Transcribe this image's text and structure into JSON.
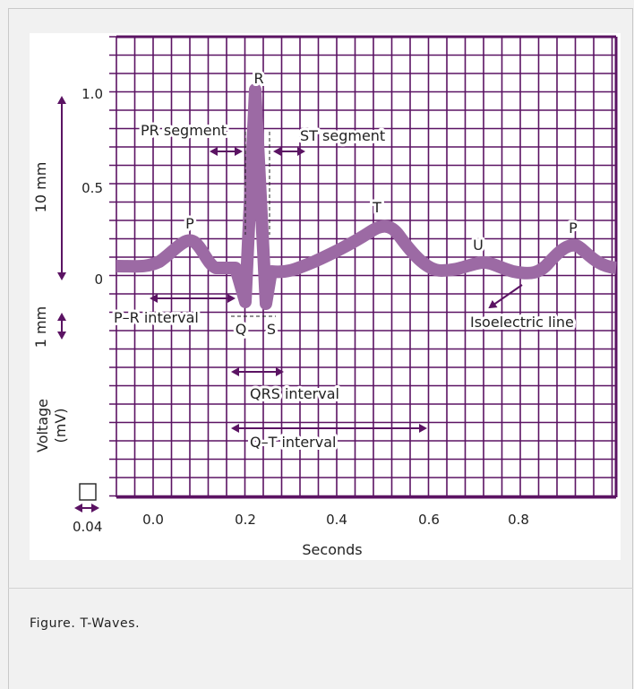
{
  "caption": "Figure. T-Waves.",
  "colors": {
    "grid": "#5b1363",
    "waveform": "#9c6aa4",
    "card_background": "#f1f1f1",
    "figure_background": "#ffffff",
    "text": "#222222"
  },
  "y_ticks": [
    "1.0",
    "0.5",
    "0"
  ],
  "x_ticks": [
    "0.0",
    "0.2",
    "0.4",
    "0.6",
    "0.8"
  ],
  "x_axis_title": "Seconds",
  "left_labels": {
    "ten_mm": "10 mm",
    "one_mm": "1 mm",
    "voltage": "Voltage",
    "voltage_unit": "(mV)",
    "small_square": "0.04"
  },
  "wave_labels": {
    "p1": "P",
    "q": "Q",
    "r": "R",
    "s": "S",
    "t": "T",
    "u": "U",
    "p2": "P"
  },
  "annotations": {
    "pr_segment": "PR segment",
    "st_segment": "ST segment",
    "pr_interval": "P–R interval",
    "isoelectric_line": "Isoelectric line",
    "qrs_interval": "QRS interval",
    "qt_interval": "Q–T interval"
  }
}
